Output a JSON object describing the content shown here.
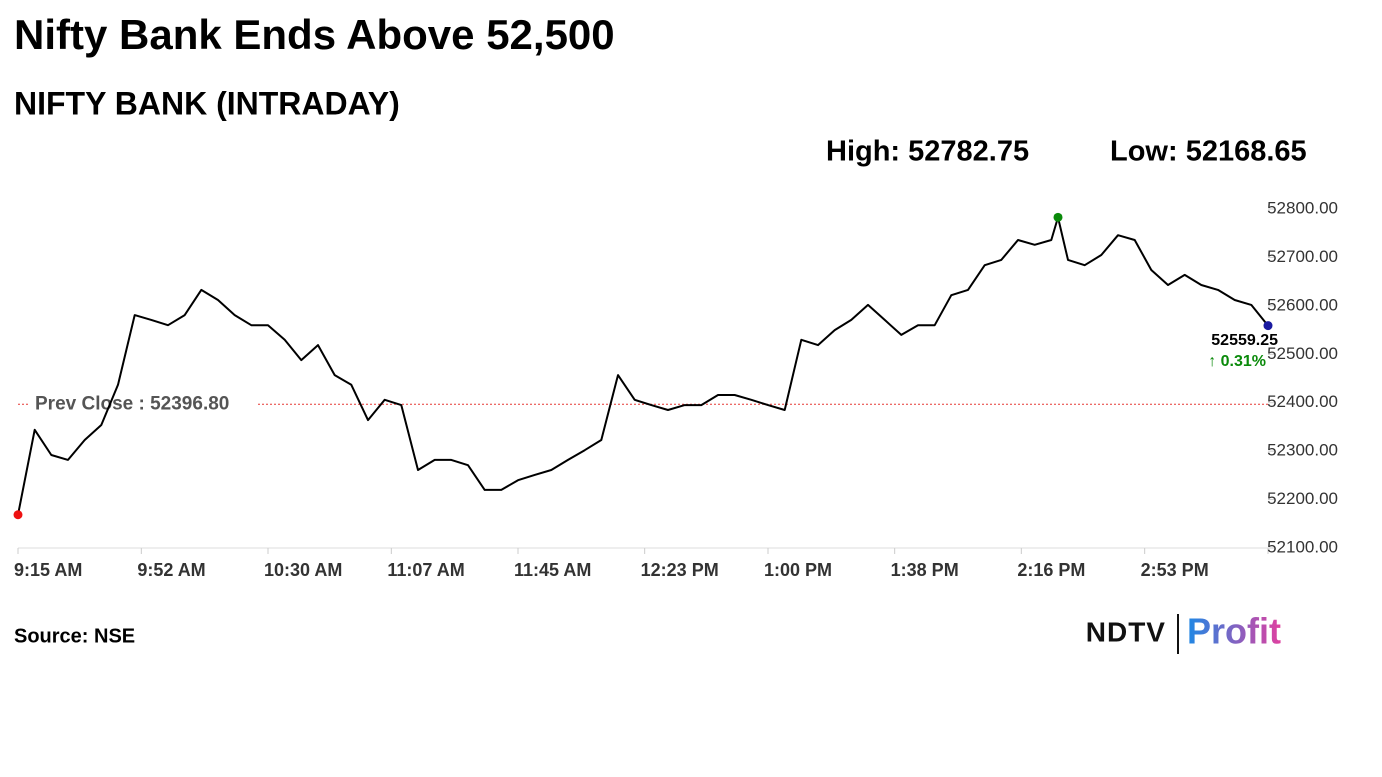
{
  "chart_data": {
    "type": "line",
    "title": "Nifty Bank Ends Above 52,500",
    "subtitle": "NIFTY BANK (INTRADAY)",
    "high_label": "High: 52782.75",
    "low_label": "Low: 52168.65",
    "source": "Source: NSE",
    "logo": [
      "NDTV",
      "Profit"
    ],
    "prev_close": {
      "value": 52396.8,
      "label": "Prev Close : 52396.80",
      "color": "#e53935"
    },
    "end_label": "52559.25",
    "change_label": "↑ 0.31%",
    "x": [
      "9:15 AM",
      "9:20 AM",
      "9:25 AM",
      "9:30 AM",
      "9:35 AM",
      "9:40 AM",
      "9:45 AM",
      "9:50 AM",
      "9:55 AM",
      "10:00 AM",
      "10:05 AM",
      "10:10 AM",
      "10:15 AM",
      "10:20 AM",
      "10:25 AM",
      "10:30 AM",
      "10:35 AM",
      "10:40 AM",
      "10:45 AM",
      "10:50 AM",
      "10:55 AM",
      "11:00 AM",
      "11:05 AM",
      "11:10 AM",
      "11:15 AM",
      "11:20 AM",
      "11:25 AM",
      "11:30 AM",
      "11:35 AM",
      "11:40 AM",
      "11:45 AM",
      "11:50 AM",
      "11:55 AM",
      "12:00 PM",
      "12:05 PM",
      "12:10 PM",
      "12:15 PM",
      "12:20 PM",
      "12:25 PM",
      "12:30 PM",
      "12:35 PM",
      "12:40 PM",
      "12:45 PM",
      "12:50 PM",
      "12:55 PM",
      "1:00 PM",
      "1:05 PM",
      "1:10 PM",
      "1:15 PM",
      "1:20 PM",
      "1:25 PM",
      "1:30 PM",
      "1:35 PM",
      "1:40 PM",
      "1:45 PM",
      "1:50 PM",
      "1:55 PM",
      "2:00 PM",
      "2:05 PM",
      "2:10 PM",
      "2:15 PM",
      "2:20 PM",
      "2:25 PM",
      "2:27 PM",
      "2:30 PM",
      "2:35 PM",
      "2:40 PM",
      "2:45 PM",
      "2:50 PM",
      "2:55 PM",
      "3:00 PM",
      "3:05 PM",
      "3:10 PM",
      "3:15 PM",
      "3:20 PM",
      "3:25 PM",
      "3:30 PM"
    ],
    "series": [
      {
        "name": "NIFTY BANK",
        "color": "#000000",
        "values": [
          52168.65,
          52344,
          52292,
          52282,
          52323,
          52354,
          52437,
          52581,
          52571,
          52560,
          52581,
          52633,
          52612,
          52581,
          52560,
          52560,
          52530,
          52488,
          52519,
          52457,
          52437,
          52364,
          52406,
          52395,
          52261,
          52282,
          52282,
          52271,
          52220,
          52220,
          52240,
          52251,
          52261,
          52282,
          52302,
          52323,
          52457,
          52406,
          52395,
          52385,
          52395,
          52395,
          52416,
          52416,
          52406,
          52395,
          52385,
          52530,
          52519,
          52550,
          52571,
          52602,
          52571,
          52540,
          52560,
          52560,
          52622,
          52633,
          52684,
          52695,
          52736,
          52726,
          52736,
          52782.75,
          52695,
          52684,
          52705,
          52746,
          52736,
          52674,
          52643,
          52664,
          52643,
          52633,
          52612,
          52602,
          52559.25
        ]
      }
    ],
    "markers": {
      "low_index": 0,
      "low_color": "#ee1111",
      "high_index": 63,
      "high_color": "#0a8a0a",
      "end_color": "#1a1aa0",
      "change_color": "#0a8a0a"
    },
    "xlim": [
      "9:15 AM",
      "3:30 PM"
    ],
    "xticks": [
      "9:15 AM",
      "9:52 AM",
      "10:30 AM",
      "11:07 AM",
      "11:45 AM",
      "12:23 PM",
      "1:00 PM",
      "1:38 PM",
      "2:16 PM",
      "2:53 PM"
    ],
    "ylim": [
      52100,
      52800
    ],
    "yticks": [
      {
        "value": 52100,
        "label": "52100.00"
      },
      {
        "value": 52200,
        "label": "52200.00"
      },
      {
        "value": 52300,
        "label": "52300.00"
      },
      {
        "value": 52400,
        "label": "52400.00"
      },
      {
        "value": 52500,
        "label": "52500.00"
      },
      {
        "value": 52600,
        "label": "52600.00"
      },
      {
        "value": 52700,
        "label": "52700.00"
      },
      {
        "value": 52800,
        "label": "52800.00"
      }
    ]
  }
}
